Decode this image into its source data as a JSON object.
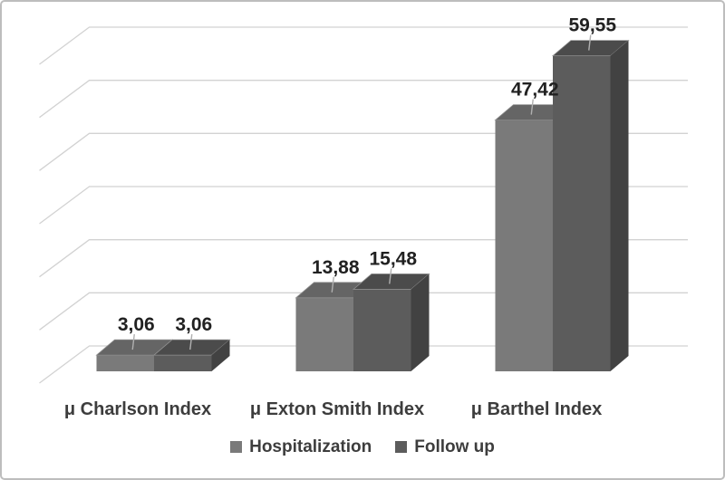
{
  "figure": {
    "background": "#ffffff",
    "border_color": "#bdbdbd"
  },
  "chart_data": {
    "type": "bar",
    "projection": "3d",
    "categories": [
      "μ Charlson Index",
      "μ Exton Smith Index",
      "μ Barthel Index"
    ],
    "series": [
      {
        "name": "Hospitalization",
        "values": [
          3.06,
          13.88,
          47.42
        ],
        "value_labels": [
          "3,06",
          "13,88",
          "47,42"
        ],
        "colors": {
          "front": "#7a7a7a",
          "top": "#656565",
          "side": "#555555"
        }
      },
      {
        "name": "Follow up",
        "values": [
          3.06,
          15.48,
          59.55
        ],
        "value_labels": [
          "3,06",
          "15,48",
          "59,55"
        ],
        "colors": {
          "front": "#5c5c5c",
          "top": "#4b4b4b",
          "side": "#424242"
        }
      }
    ],
    "ylim": [
      0,
      60
    ],
    "gridline_step": 10,
    "grid": "on",
    "y_axis_tick_labels": "none",
    "legend_position": "bottom",
    "decimal_separator": ",",
    "gridline_color": "#d2d2d2",
    "leader_line_color": "#b0b0b0",
    "data_label_color": "#212121",
    "axis_label_color": "#3d3d3d"
  }
}
